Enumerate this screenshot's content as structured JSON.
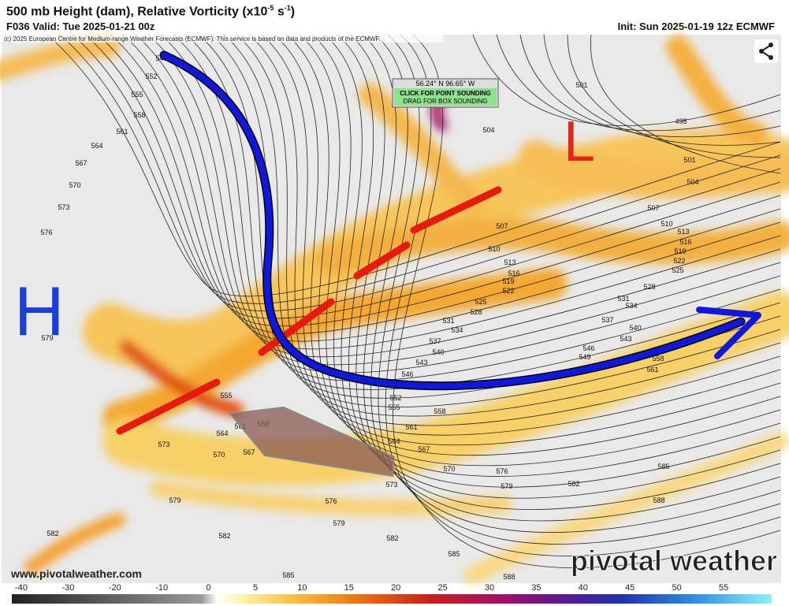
{
  "header": {
    "title": "500 mb Height (dam), Relative Vorticity (x10",
    "title_exponent": "-5",
    "title_unit": "s",
    "title_unit_exponent": "-1",
    "title_close": ")",
    "valid": "F036 Valid: Tue 2025-01-21 00z",
    "init": "Init: Sun 2025-01-19 12z ECMWF"
  },
  "copyright": "(c) 2025 European Centre for Medium-range Weather Forecasts (ECMWF). This service is based on data and products of the ECMWF.",
  "tooltip": {
    "coords": "56.24° N 96.65° W",
    "point": "CLICK FOR POINT SOUNDING",
    "box": "DRAG FOR BOX SOUNDING"
  },
  "pressure_centers": {
    "high": "H",
    "low": "L"
  },
  "contour_labels": [
    549,
    552,
    555,
    558,
    561,
    564,
    567,
    570,
    573,
    576,
    579,
    501,
    498,
    501,
    504,
    504,
    507,
    507,
    510,
    510,
    513,
    513,
    516,
    516,
    519,
    519,
    522,
    522,
    525,
    525,
    528,
    528,
    531,
    531,
    534,
    534,
    537,
    537,
    540,
    540,
    543,
    543,
    546,
    546,
    549,
    552,
    555,
    558,
    561,
    564,
    567,
    570,
    573,
    576,
    579,
    582,
    585,
    588,
    555,
    558,
    561,
    564,
    567,
    570,
    573,
    576,
    579,
    579,
    582,
    582,
    582,
    585,
    585,
    588,
    561,
    558
  ],
  "website": "www.pivotalweather.com",
  "brand": "pivotal weather",
  "colorbar": {
    "ticks": [
      -40,
      -30,
      -20,
      -10,
      0,
      5,
      10,
      15,
      20,
      25,
      30,
      35,
      40,
      45,
      50,
      55
    ]
  }
}
